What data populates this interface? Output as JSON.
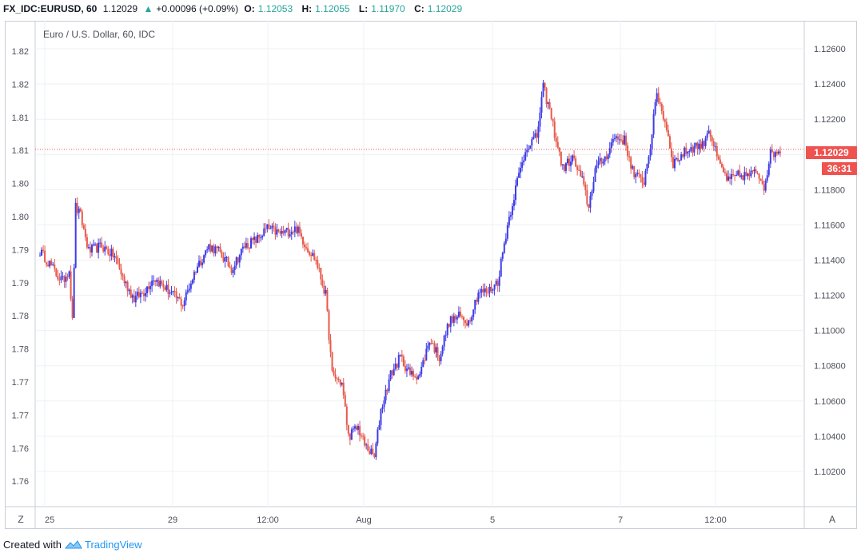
{
  "header": {
    "symbol": "FX_IDC:EURUSD, 60",
    "last": "1.12029",
    "arrow": "▲",
    "change": "+0.00096 (+0.09%)",
    "o_label": "O:",
    "o_val": "1.12053",
    "h_label": "H:",
    "h_val": "1.12055",
    "l_label": "L:",
    "l_val": "1.11970",
    "c_label": "C:",
    "c_val": "1.12029"
  },
  "watermark": "Euro / U.S. Dollar, 60, IDC",
  "price_tag": "1.12029",
  "countdown": "36:31",
  "corner_left": "Z",
  "corner_right": "A",
  "footer": {
    "created_with": "Created with",
    "brand": "TradingView"
  },
  "colors": {
    "up": "#3d3be8",
    "down": "#e8594a",
    "grid": "#eef0f3",
    "price_line": "#ef5350",
    "accent": "#2196f3"
  },
  "chart_data": {
    "type": "candlestick",
    "title": "Euro / U.S. Dollar, 60, IDC",
    "ylim": [
      1.1,
      1.1275
    ],
    "right_axis_ticks": [
      1.126,
      1.124,
      1.122,
      1.12,
      1.118,
      1.116,
      1.114,
      1.112,
      1.11,
      1.108,
      1.106,
      1.104,
      1.102
    ],
    "right_axis_labels": [
      "1.12600",
      "1.12400",
      "1.12200",
      "1.12000",
      "1.11800",
      "1.11600",
      "1.11400",
      "1.11200",
      "1.11000",
      "1.10800",
      "1.10600",
      "1.10400",
      "1.10200"
    ],
    "left_axis_labels": [
      "1.82",
      "1.82",
      "1.81",
      "1.81",
      "1.80",
      "1.80",
      "1.79",
      "1.79",
      "1.78",
      "1.78",
      "1.77",
      "1.77",
      "1.76",
      "1.76"
    ],
    "x_labels": [
      "25",
      "29",
      "12:00",
      "Aug",
      "5",
      "7",
      "12:00"
    ],
    "last_price": 1.12029,
    "anchors": [
      [
        0,
        1.1145
      ],
      [
        6,
        1.1138
      ],
      [
        10,
        1.1132
      ],
      [
        14,
        1.1128
      ],
      [
        18,
        1.1135
      ],
      [
        20,
        1.1105
      ],
      [
        22,
        1.117
      ],
      [
        25,
        1.1165
      ],
      [
        30,
        1.1145
      ],
      [
        38,
        1.1148
      ],
      [
        46,
        1.1142
      ],
      [
        52,
        1.1128
      ],
      [
        58,
        1.1118
      ],
      [
        64,
        1.1122
      ],
      [
        70,
        1.113
      ],
      [
        80,
        1.1122
      ],
      [
        88,
        1.1115
      ],
      [
        96,
        1.1135
      ],
      [
        104,
        1.1148
      ],
      [
        110,
        1.1145
      ],
      [
        118,
        1.1135
      ],
      [
        126,
        1.1148
      ],
      [
        134,
        1.1152
      ],
      [
        140,
        1.1158
      ],
      [
        148,
        1.1155
      ],
      [
        158,
        1.1158
      ],
      [
        164,
        1.1148
      ],
      [
        170,
        1.114
      ],
      [
        176,
        1.112
      ],
      [
        180,
        1.1075
      ],
      [
        186,
        1.107
      ],
      [
        190,
        1.104
      ],
      [
        196,
        1.1045
      ],
      [
        200,
        1.1035
      ],
      [
        206,
        1.1028
      ],
      [
        210,
        1.1055
      ],
      [
        216,
        1.1075
      ],
      [
        222,
        1.1085
      ],
      [
        228,
        1.1075
      ],
      [
        234,
        1.1075
      ],
      [
        240,
        1.1095
      ],
      [
        246,
        1.1085
      ],
      [
        252,
        1.1105
      ],
      [
        258,
        1.1108
      ],
      [
        264,
        1.1105
      ],
      [
        270,
        1.1122
      ],
      [
        276,
        1.1122
      ],
      [
        282,
        1.1128
      ],
      [
        288,
        1.116
      ],
      [
        294,
        1.1185
      ],
      [
        300,
        1.1205
      ],
      [
        306,
        1.121
      ],
      [
        310,
        1.1238
      ],
      [
        314,
        1.1225
      ],
      [
        318,
        1.1208
      ],
      [
        322,
        1.1192
      ],
      [
        328,
        1.1198
      ],
      [
        334,
        1.1185
      ],
      [
        338,
        1.117
      ],
      [
        342,
        1.1192
      ],
      [
        348,
        1.1198
      ],
      [
        354,
        1.121
      ],
      [
        360,
        1.1208
      ],
      [
        366,
        1.1188
      ],
      [
        372,
        1.1185
      ],
      [
        376,
        1.1205
      ],
      [
        380,
        1.1235
      ],
      [
        386,
        1.1215
      ],
      [
        390,
        1.1195
      ],
      [
        398,
        1.1202
      ],
      [
        404,
        1.1205
      ],
      [
        408,
        1.1205
      ],
      [
        412,
        1.1215
      ],
      [
        418,
        1.1195
      ],
      [
        424,
        1.1185
      ],
      [
        430,
        1.1188
      ],
      [
        436,
        1.1188
      ],
      [
        442,
        1.119
      ],
      [
        446,
        1.1182
      ],
      [
        450,
        1.12
      ],
      [
        456,
        1.1203
      ]
    ]
  }
}
